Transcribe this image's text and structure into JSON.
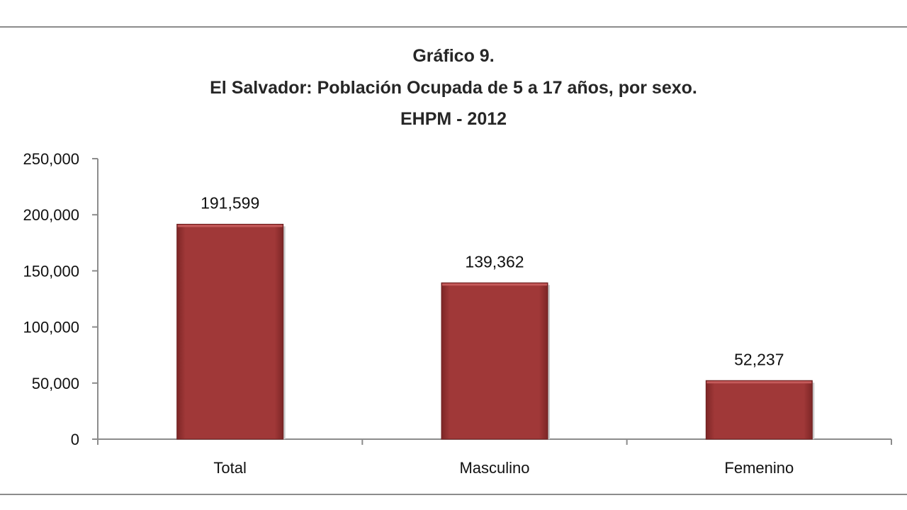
{
  "chart_data": {
    "type": "bar",
    "title_lines": [
      "Gráfico 9.",
      "El Salvador: Población Ocupada de 5 a 17 años, por sexo.",
      "EHPM - 2012"
    ],
    "categories": [
      "Total",
      "Masculino",
      "Femenino"
    ],
    "values": [
      191599,
      139362,
      52237
    ],
    "value_labels": [
      "191,599",
      "139,362",
      "52,237"
    ],
    "y_ticks": [
      0,
      50000,
      100000,
      150000,
      200000,
      250000
    ],
    "y_tick_labels": [
      "0",
      "50,000",
      "100,000",
      "150,000",
      "200,000",
      "250,000"
    ],
    "ylim": [
      0,
      250000
    ],
    "xlabel": "",
    "ylabel": "",
    "grid": false,
    "legend": "none",
    "bar_color": "#9c3535",
    "bar_shadow_color": "#7a2424"
  }
}
